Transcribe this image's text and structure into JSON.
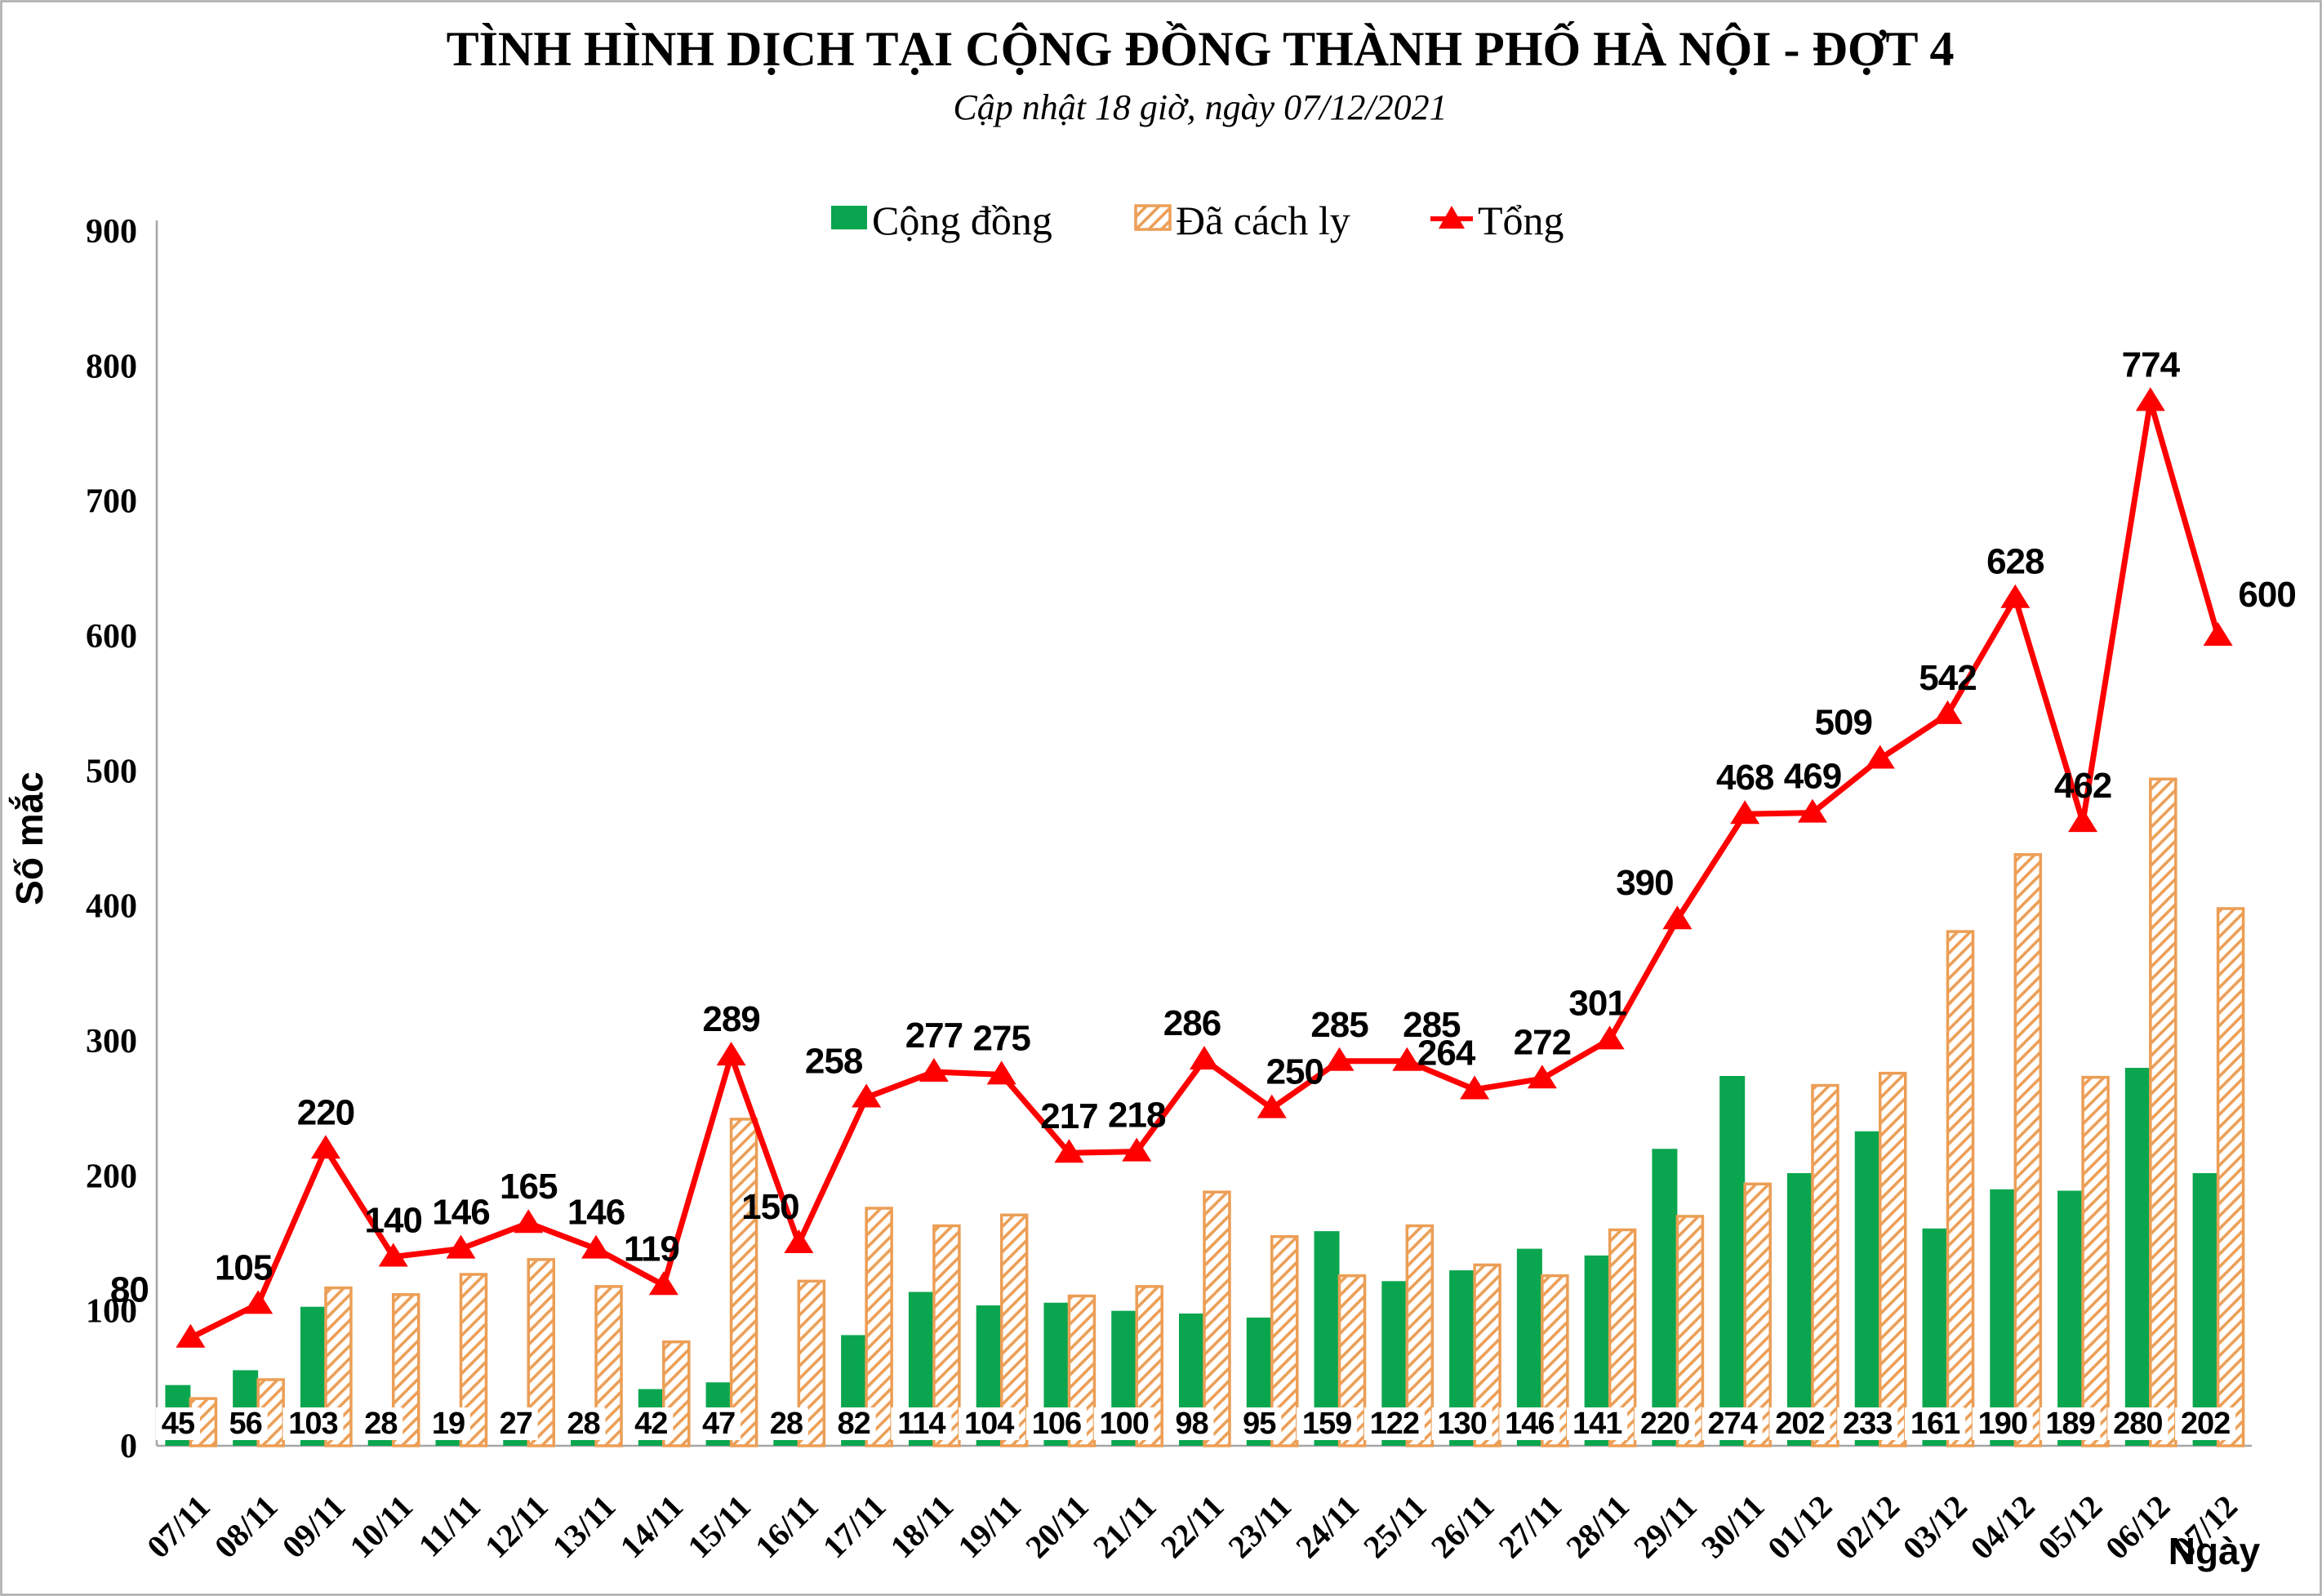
{
  "title": "TÌNH HÌNH DỊCH TẠI CỘNG ĐỒNG THÀNH PHỐ HÀ NỘI - ĐỢT 4",
  "subtitle": "Cập nhật 18 giờ, ngày 07/12/2021",
  "y_axis": {
    "title": "Số mắc",
    "min": 0,
    "max": 900,
    "step": 100
  },
  "x_axis": {
    "title": "Ngày"
  },
  "legend": {
    "items": [
      {
        "label": "Cộng đồng",
        "swatch": "solid-green-square"
      },
      {
        "label": "Đã cách ly",
        "swatch": "orange-hatched-square"
      },
      {
        "label": "Tổng",
        "swatch": "red-line-triangle-marker"
      }
    ]
  },
  "colors": {
    "green": "#0aa64f",
    "orange": "#ec9e55",
    "red": "#fe0000",
    "axis": "#a6a6a6",
    "border": "#ababab",
    "text": "#000000",
    "label_box": "#ffffff"
  },
  "chart_data": {
    "type": "combo-bar-line",
    "title": "TÌNH HÌNH DỊCH TẠI CỘNG ĐỒNG THÀNH PHỐ HÀ NỘI - ĐỢT 4",
    "subtitle": "Cập nhật 18 giờ, ngày 07/12/2021",
    "xlabel": "Ngày",
    "ylabel": "Số mắc",
    "ylim": [
      0,
      900
    ],
    "ytick_step": 100,
    "grid": false,
    "legend_position": "top",
    "categories": [
      "07/11",
      "08/11",
      "09/11",
      "10/11",
      "11/11",
      "12/11",
      "13/11",
      "14/11",
      "15/11",
      "16/11",
      "17/11",
      "18/11",
      "19/11",
      "20/11",
      "21/11",
      "22/11",
      "23/11",
      "24/11",
      "25/11",
      "26/11",
      "27/11",
      "28/11",
      "29/11",
      "30/11",
      "01/12",
      "02/12",
      "03/12",
      "04/12",
      "05/12",
      "06/12",
      "07/12"
    ],
    "series": [
      {
        "name": "Cộng đồng",
        "type": "bar",
        "style": "solid",
        "color_key": "green",
        "data_labels": true,
        "values": [
          45,
          56,
          103,
          28,
          19,
          27,
          28,
          42,
          47,
          28,
          82,
          114,
          104,
          106,
          100,
          98,
          95,
          159,
          122,
          130,
          146,
          141,
          220,
          274,
          202,
          233,
          161,
          190,
          189,
          280,
          202
        ]
      },
      {
        "name": "Đã cách ly",
        "type": "bar",
        "style": "hatched",
        "color_key": "orange",
        "data_labels": false,
        "values": [
          35,
          49,
          117,
          112,
          127,
          138,
          118,
          77,
          242,
          122,
          176,
          163,
          171,
          111,
          118,
          188,
          155,
          126,
          163,
          134,
          126,
          160,
          170,
          194,
          267,
          276,
          381,
          438,
          273,
          494,
          398
        ]
      },
      {
        "name": "Tổng",
        "type": "line",
        "style": "triangle-marker",
        "color_key": "red",
        "data_labels": true,
        "values": [
          80,
          105,
          220,
          140,
          146,
          165,
          146,
          119,
          289,
          150,
          258,
          277,
          275,
          217,
          218,
          286,
          250,
          285,
          285,
          264,
          272,
          301,
          390,
          468,
          469,
          509,
          542,
          628,
          462,
          774,
          600
        ]
      }
    ],
    "line_label_offsets": {
      "0": [
        -75,
        -14
      ],
      "1": [
        -18,
        0
      ],
      "7": [
        -15,
        0
      ],
      "9": [
        -35,
        0
      ],
      "10": [
        -40,
        0
      ],
      "15": [
        -15,
        0
      ],
      "16": [
        28,
        0
      ],
      "18": [
        30,
        0
      ],
      "19": [
        -35,
        0
      ],
      "21": [
        -15,
        0
      ],
      "22": [
        -40,
        0
      ],
      "25": [
        -45,
        0
      ],
      "30": [
        60,
        -6
      ]
    }
  }
}
